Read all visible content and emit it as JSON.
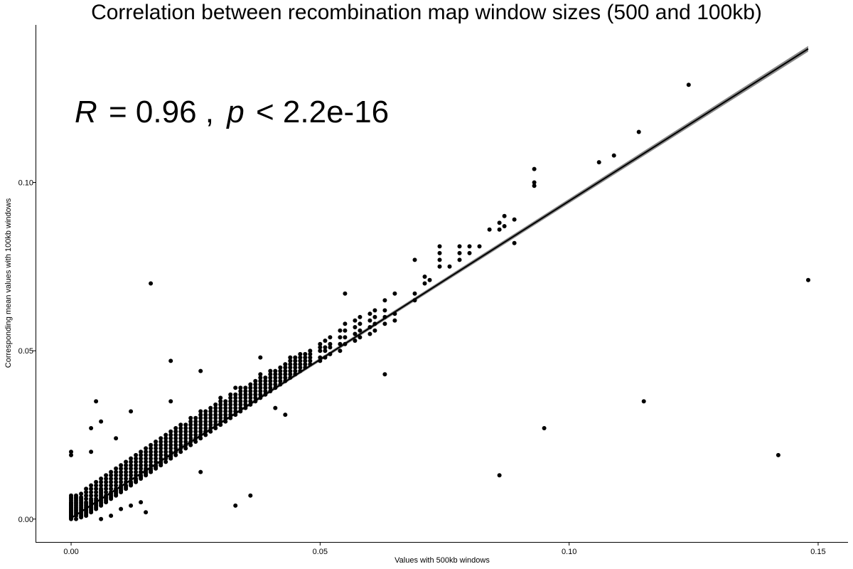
{
  "chart_data": {
    "type": "scatter",
    "title": "Correlation between recombination map window sizes (500 and 100kb)",
    "xlabel": "Values with 500kb windows",
    "ylabel": "Corresponding mean values with 100kb windows",
    "xlim": [
      -0.007,
      0.156
    ],
    "ylim": [
      -0.0068,
      0.1468
    ],
    "x_ticks": [
      0.0,
      0.05,
      0.1,
      0.15
    ],
    "x_tick_labels": [
      "0.00",
      "0.05",
      "0.10",
      "0.15"
    ],
    "y_ticks": [
      0.0,
      0.05,
      0.1
    ],
    "y_tick_labels": [
      "0.00",
      "0.05",
      "0.10"
    ],
    "grid": false,
    "annotation": {
      "R_symbol": "R",
      "R_value": "= 0.96 ,",
      "p_symbol": "p",
      "p_value": "< 2.2e-16"
    },
    "regression": {
      "x_start": 0.0,
      "y_start": 0.0003,
      "x_end": 0.148,
      "y_end": 0.1397,
      "band": "confidence interval (grey)"
    },
    "points": {
      "x": [
        0.0,
        0.0,
        0.0,
        0.0,
        0.0,
        0.0,
        0.0,
        0.0,
        0.0,
        0.0,
        0.0,
        0.0,
        0.0,
        0.0,
        0.0,
        0.0,
        0.0,
        0.0,
        0.0,
        0.0,
        0.0,
        0.0,
        0.0,
        0.0,
        0.0,
        0.001,
        0.001,
        0.001,
        0.001,
        0.001,
        0.001,
        0.001,
        0.001,
        0.001,
        0.001,
        0.001,
        0.001,
        0.001,
        0.001,
        0.002,
        0.002,
        0.002,
        0.002,
        0.002,
        0.002,
        0.002,
        0.002,
        0.002,
        0.002,
        0.002,
        0.002,
        0.002,
        0.002,
        0.003,
        0.003,
        0.003,
        0.003,
        0.003,
        0.003,
        0.003,
        0.003,
        0.003,
        0.003,
        0.003,
        0.003,
        0.003,
        0.004,
        0.004,
        0.004,
        0.004,
        0.004,
        0.004,
        0.004,
        0.004,
        0.004,
        0.004,
        0.004,
        0.004,
        0.004,
        0.005,
        0.005,
        0.005,
        0.005,
        0.005,
        0.005,
        0.005,
        0.005,
        0.005,
        0.005,
        0.005,
        0.005,
        0.006,
        0.006,
        0.006,
        0.006,
        0.006,
        0.006,
        0.006,
        0.006,
        0.006,
        0.006,
        0.006,
        0.006,
        0.006,
        0.006,
        0.006,
        0.007,
        0.007,
        0.007,
        0.007,
        0.007,
        0.007,
        0.007,
        0.007,
        0.007,
        0.007,
        0.007,
        0.008,
        0.008,
        0.008,
        0.008,
        0.008,
        0.008,
        0.008,
        0.008,
        0.008,
        0.008,
        0.008,
        0.008,
        0.009,
        0.009,
        0.009,
        0.009,
        0.009,
        0.009,
        0.009,
        0.009,
        0.009,
        0.009,
        0.009,
        0.01,
        0.01,
        0.01,
        0.01,
        0.01,
        0.01,
        0.01,
        0.01,
        0.01,
        0.01,
        0.01,
        0.01,
        0.011,
        0.011,
        0.011,
        0.011,
        0.011,
        0.011,
        0.011,
        0.011,
        0.011,
        0.011,
        0.012,
        0.012,
        0.012,
        0.012,
        0.012,
        0.012,
        0.012,
        0.012,
        0.012,
        0.012,
        0.012,
        0.013,
        0.013,
        0.013,
        0.013,
        0.013,
        0.013,
        0.013,
        0.013,
        0.013,
        0.013,
        0.014,
        0.014,
        0.014,
        0.014,
        0.014,
        0.014,
        0.014,
        0.014,
        0.014,
        0.014,
        0.014,
        0.015,
        0.015,
        0.015,
        0.015,
        0.015,
        0.015,
        0.015,
        0.015,
        0.015,
        0.015,
        0.015,
        0.015,
        0.016,
        0.016,
        0.016,
        0.016,
        0.016,
        0.016,
        0.016,
        0.016,
        0.016,
        0.016,
        0.017,
        0.017,
        0.017,
        0.017,
        0.017,
        0.017,
        0.017,
        0.017,
        0.017,
        0.017,
        0.018,
        0.018,
        0.018,
        0.018,
        0.018,
        0.018,
        0.018,
        0.018,
        0.018,
        0.018,
        0.019,
        0.019,
        0.019,
        0.019,
        0.019,
        0.019,
        0.019,
        0.019,
        0.019,
        0.02,
        0.02,
        0.02,
        0.02,
        0.02,
        0.02,
        0.02,
        0.02,
        0.02,
        0.02,
        0.021,
        0.021,
        0.021,
        0.021,
        0.021,
        0.021,
        0.021,
        0.021,
        0.021,
        0.022,
        0.022,
        0.022,
        0.022,
        0.022,
        0.022,
        0.022,
        0.022,
        0.022,
        0.023,
        0.023,
        0.023,
        0.023,
        0.023,
        0.023,
        0.023,
        0.023,
        0.024,
        0.024,
        0.024,
        0.024,
        0.024,
        0.024,
        0.024,
        0.024,
        0.024,
        0.025,
        0.025,
        0.025,
        0.025,
        0.025,
        0.025,
        0.025,
        0.025,
        0.026,
        0.026,
        0.026,
        0.026,
        0.026,
        0.026,
        0.026,
        0.026,
        0.026,
        0.027,
        0.027,
        0.027,
        0.027,
        0.027,
        0.027,
        0.027,
        0.027,
        0.028,
        0.028,
        0.028,
        0.028,
        0.028,
        0.028,
        0.028,
        0.028,
        0.029,
        0.029,
        0.029,
        0.029,
        0.029,
        0.029,
        0.029,
        0.029,
        0.03,
        0.03,
        0.03,
        0.03,
        0.03,
        0.03,
        0.03,
        0.03,
        0.03,
        0.031,
        0.031,
        0.031,
        0.031,
        0.031,
        0.031,
        0.031,
        0.032,
        0.032,
        0.032,
        0.032,
        0.032,
        0.032,
        0.032,
        0.032,
        0.033,
        0.033,
        0.033,
        0.033,
        0.033,
        0.033,
        0.033,
        0.034,
        0.034,
        0.034,
        0.034,
        0.034,
        0.034,
        0.034,
        0.034,
        0.035,
        0.035,
        0.035,
        0.035,
        0.035,
        0.035,
        0.035,
        0.036,
        0.036,
        0.036,
        0.036,
        0.036,
        0.036,
        0.036,
        0.037,
        0.037,
        0.037,
        0.037,
        0.037,
        0.037,
        0.037,
        0.038,
        0.038,
        0.038,
        0.038,
        0.038,
        0.038,
        0.038,
        0.038,
        0.039,
        0.039,
        0.039,
        0.039,
        0.039,
        0.039,
        0.04,
        0.04,
        0.04,
        0.04,
        0.04,
        0.04,
        0.04,
        0.041,
        0.041,
        0.041,
        0.041,
        0.041,
        0.041,
        0.042,
        0.042,
        0.042,
        0.042,
        0.042,
        0.042,
        0.043,
        0.043,
        0.043,
        0.043,
        0.043,
        0.043,
        0.044,
        0.044,
        0.044,
        0.044,
        0.044,
        0.044,
        0.044,
        0.045,
        0.045,
        0.045,
        0.045,
        0.045,
        0.045,
        0.046,
        0.046,
        0.046,
        0.046,
        0.046,
        0.046,
        0.047,
        0.047,
        0.047,
        0.047,
        0.047,
        0.048,
        0.048,
        0.048,
        0.048,
        0.048,
        0.05,
        0.05,
        0.05,
        0.05,
        0.05,
        0.051,
        0.051,
        0.051,
        0.051,
        0.052,
        0.052,
        0.052,
        0.052,
        0.054,
        0.054,
        0.054,
        0.054,
        0.055,
        0.055,
        0.055,
        0.055,
        0.057,
        0.057,
        0.057,
        0.057,
        0.058,
        0.058,
        0.058,
        0.058,
        0.06,
        0.06,
        0.06,
        0.06,
        0.061,
        0.061,
        0.061,
        0.061,
        0.063,
        0.063,
        0.063,
        0.063,
        0.065,
        0.065,
        0.065,
        0.069,
        0.069,
        0.069,
        0.071,
        0.071,
        0.072,
        0.074,
        0.074,
        0.074,
        0.074,
        0.076,
        0.078,
        0.078,
        0.078,
        0.08,
        0.08,
        0.082,
        0.084,
        0.086,
        0.086,
        0.087,
        0.087,
        0.089,
        0.089,
        0.093,
        0.093,
        0.093,
        0.106,
        0.109,
        0.114,
        0.124,
        0.016,
        0.02,
        0.026,
        0.033,
        0.038,
        0.055,
        0.086,
        0.095,
        0.115,
        0.142,
        0.148,
        0.063,
        0.005,
        0.041,
        0.027,
        0.02,
        0.036,
        0.033,
        0.043,
        0.009,
        0.014,
        0.012,
        0.026,
        0.0,
        0.0,
        0.004,
        0.004,
        0.006
      ],
      "y": [
        0.0,
        0.0005,
        0.001,
        0.0015,
        0.002,
        0.0025,
        0.003,
        0.0035,
        0.004,
        0.0045,
        0.005,
        0.0055,
        0.006,
        0.0065,
        0.007,
        0.0003,
        0.0008,
        0.0012,
        0.0018,
        0.0022,
        0.0028,
        0.0032,
        0.0038,
        0.0042,
        0.0048,
        0.0,
        0.001,
        0.002,
        0.003,
        0.004,
        0.005,
        0.006,
        0.007,
        0.0015,
        0.0025,
        0.0035,
        0.0045,
        0.0055,
        0.0065,
        0.0005,
        0.0015,
        0.0025,
        0.0035,
        0.0045,
        0.0055,
        0.0065,
        0.0075,
        0.001,
        0.002,
        0.003,
        0.004,
        0.005,
        0.006,
        0.001,
        0.002,
        0.003,
        0.004,
        0.005,
        0.006,
        0.007,
        0.008,
        0.009,
        0.0015,
        0.0025,
        0.0035,
        0.0045,
        0.002,
        0.003,
        0.004,
        0.005,
        0.006,
        0.007,
        0.008,
        0.009,
        0.01,
        0.0025,
        0.0035,
        0.0045,
        0.0055,
        0.003,
        0.004,
        0.005,
        0.006,
        0.007,
        0.008,
        0.009,
        0.01,
        0.011,
        0.0035,
        0.0045,
        0.0055,
        0.0,
        0.004,
        0.005,
        0.006,
        0.007,
        0.008,
        0.009,
        0.01,
        0.011,
        0.012,
        0.0045,
        0.0055,
        0.0065,
        0.0075,
        0.0085,
        0.005,
        0.006,
        0.007,
        0.008,
        0.009,
        0.01,
        0.011,
        0.012,
        0.013,
        0.0055,
        0.0065,
        0.001,
        0.006,
        0.007,
        0.008,
        0.009,
        0.01,
        0.011,
        0.012,
        0.013,
        0.014,
        0.0065,
        0.0075,
        0.007,
        0.008,
        0.009,
        0.01,
        0.011,
        0.012,
        0.013,
        0.014,
        0.015,
        0.0075,
        0.0085,
        0.003,
        0.008,
        0.009,
        0.01,
        0.011,
        0.012,
        0.013,
        0.014,
        0.015,
        0.016,
        0.0085,
        0.0095,
        0.009,
        0.01,
        0.011,
        0.012,
        0.013,
        0.014,
        0.015,
        0.016,
        0.017,
        0.0095,
        0.004,
        0.01,
        0.011,
        0.012,
        0.013,
        0.014,
        0.015,
        0.016,
        0.017,
        0.018,
        0.0105,
        0.011,
        0.012,
        0.013,
        0.014,
        0.015,
        0.016,
        0.017,
        0.018,
        0.019,
        0.0115,
        0.005,
        0.012,
        0.013,
        0.014,
        0.015,
        0.016,
        0.017,
        0.018,
        0.019,
        0.02,
        0.0125,
        0.002,
        0.013,
        0.014,
        0.015,
        0.016,
        0.017,
        0.018,
        0.019,
        0.02,
        0.021,
        0.0135,
        0.0145,
        0.014,
        0.015,
        0.016,
        0.017,
        0.018,
        0.019,
        0.02,
        0.021,
        0.022,
        0.0145,
        0.015,
        0.016,
        0.017,
        0.018,
        0.019,
        0.02,
        0.021,
        0.022,
        0.023,
        0.0155,
        0.016,
        0.017,
        0.018,
        0.019,
        0.02,
        0.021,
        0.022,
        0.023,
        0.024,
        0.0165,
        0.017,
        0.018,
        0.019,
        0.02,
        0.021,
        0.022,
        0.023,
        0.024,
        0.025,
        0.018,
        0.019,
        0.02,
        0.021,
        0.022,
        0.023,
        0.024,
        0.025,
        0.026,
        0.0185,
        0.019,
        0.02,
        0.021,
        0.022,
        0.023,
        0.024,
        0.025,
        0.026,
        0.027,
        0.02,
        0.021,
        0.022,
        0.023,
        0.024,
        0.025,
        0.026,
        0.027,
        0.028,
        0.021,
        0.022,
        0.023,
        0.024,
        0.025,
        0.026,
        0.027,
        0.028,
        0.022,
        0.023,
        0.024,
        0.025,
        0.026,
        0.027,
        0.028,
        0.029,
        0.03,
        0.023,
        0.024,
        0.025,
        0.026,
        0.027,
        0.028,
        0.029,
        0.03,
        0.024,
        0.025,
        0.026,
        0.027,
        0.028,
        0.029,
        0.03,
        0.031,
        0.032,
        0.025,
        0.026,
        0.027,
        0.028,
        0.029,
        0.03,
        0.031,
        0.032,
        0.026,
        0.027,
        0.028,
        0.029,
        0.03,
        0.031,
        0.032,
        0.033,
        0.027,
        0.028,
        0.029,
        0.03,
        0.031,
        0.032,
        0.033,
        0.034,
        0.028,
        0.029,
        0.03,
        0.031,
        0.032,
        0.033,
        0.034,
        0.035,
        0.036,
        0.029,
        0.03,
        0.031,
        0.032,
        0.033,
        0.034,
        0.035,
        0.03,
        0.031,
        0.032,
        0.033,
        0.034,
        0.035,
        0.036,
        0.037,
        0.031,
        0.032,
        0.033,
        0.034,
        0.035,
        0.036,
        0.037,
        0.032,
        0.033,
        0.034,
        0.035,
        0.036,
        0.037,
        0.038,
        0.039,
        0.033,
        0.034,
        0.035,
        0.036,
        0.037,
        0.038,
        0.039,
        0.034,
        0.035,
        0.036,
        0.037,
        0.038,
        0.039,
        0.04,
        0.035,
        0.036,
        0.037,
        0.038,
        0.039,
        0.04,
        0.041,
        0.036,
        0.037,
        0.038,
        0.039,
        0.04,
        0.041,
        0.042,
        0.043,
        0.037,
        0.038,
        0.039,
        0.04,
        0.041,
        0.042,
        0.038,
        0.039,
        0.04,
        0.041,
        0.042,
        0.043,
        0.044,
        0.039,
        0.04,
        0.041,
        0.042,
        0.043,
        0.044,
        0.04,
        0.041,
        0.042,
        0.043,
        0.044,
        0.045,
        0.041,
        0.042,
        0.043,
        0.044,
        0.045,
        0.046,
        0.042,
        0.043,
        0.044,
        0.045,
        0.046,
        0.047,
        0.048,
        0.043,
        0.044,
        0.045,
        0.046,
        0.047,
        0.048,
        0.044,
        0.045,
        0.046,
        0.047,
        0.048,
        0.049,
        0.045,
        0.046,
        0.047,
        0.048,
        0.049,
        0.046,
        0.047,
        0.048,
        0.049,
        0.05,
        0.047,
        0.048,
        0.05,
        0.051,
        0.052,
        0.048,
        0.05,
        0.051,
        0.053,
        0.049,
        0.051,
        0.052,
        0.054,
        0.05,
        0.052,
        0.054,
        0.056,
        0.052,
        0.054,
        0.056,
        0.058,
        0.053,
        0.055,
        0.057,
        0.059,
        0.054,
        0.056,
        0.058,
        0.06,
        0.055,
        0.057,
        0.059,
        0.061,
        0.056,
        0.058,
        0.06,
        0.062,
        0.058,
        0.06,
        0.062,
        0.065,
        0.059,
        0.061,
        0.067,
        0.065,
        0.067,
        0.077,
        0.07,
        0.072,
        0.071,
        0.075,
        0.077,
        0.079,
        0.081,
        0.075,
        0.077,
        0.079,
        0.081,
        0.079,
        0.081,
        0.081,
        0.086,
        0.086,
        0.088,
        0.087,
        0.09,
        0.082,
        0.089,
        0.099,
        0.1,
        0.104,
        0.106,
        0.108,
        0.115,
        0.129,
        0.07,
        0.047,
        0.044,
        0.039,
        0.048,
        0.067,
        0.013,
        0.027,
        0.035,
        0.019,
        0.071,
        0.043,
        0.035,
        0.033,
        0.026,
        0.035,
        0.007,
        0.004,
        0.031,
        0.024,
        0.014,
        0.032,
        0.014,
        0.02,
        0.019,
        0.02,
        0.027,
        0.029
      ]
    }
  }
}
